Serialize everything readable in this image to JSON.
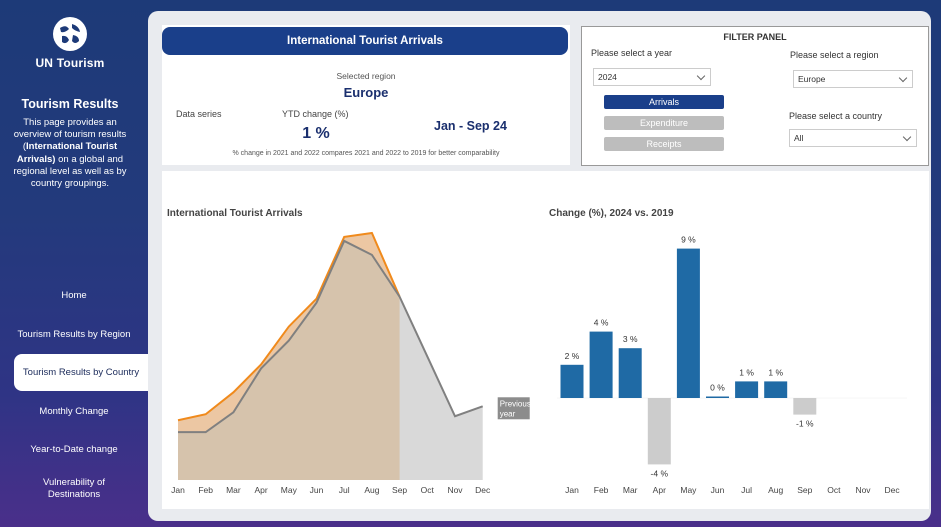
{
  "sidebar": {
    "brand": "UN Tourism",
    "title": "Tourism Results",
    "description_pre": "This page provides an overview of tourism results (",
    "description_bold": "International Tourist Arrivals)",
    "description_post": " on a global and regional level as well as by country groupings.",
    "nav": [
      {
        "label": "Home"
      },
      {
        "label": "Tourism Results by Region"
      },
      {
        "label": "Tourism Results by Country"
      },
      {
        "label": "Monthly Change"
      },
      {
        "label": "Year-to-Date change"
      },
      {
        "label": "Vulnerability of Destinations"
      }
    ]
  },
  "summary": {
    "title": "International Tourist Arrivals",
    "selected_region_label": "Selected region",
    "selected_region": "Europe",
    "data_series_label": "Data series",
    "ytd_label": "YTD change (%)",
    "ytd_value": "1 %",
    "period": "Jan - Sep 24",
    "note": "% change in 2021 and 2022 compares 2021 and 2022  to 2019 for better comparability"
  },
  "filter": {
    "title": "FILTER PANEL",
    "year_label": "Please select a year",
    "year_value": "2024",
    "region_label": "Please select a region",
    "region_value": "Europe",
    "country_label": "Please select a country",
    "country_value": "All",
    "series_buttons": [
      {
        "label": "Arrivals",
        "selected": true
      },
      {
        "label": "Expenditure",
        "selected": false
      },
      {
        "label": "Receipts",
        "selected": false
      }
    ]
  },
  "colors": {
    "accent": "#1a3f8a",
    "orange": "#f08a1c",
    "area_current": "#d6c3ac",
    "area_prev": "#d9d9d9",
    "line_prev": "#808080",
    "bar_pos": "#1f6aa5",
    "bar_neg": "#cccccc"
  },
  "chart_data": [
    {
      "type": "area",
      "title": "International Tourist Arrivals",
      "categories": [
        "Jan",
        "Feb",
        "Mar",
        "Apr",
        "May",
        "Jun",
        "Jul",
        "Aug",
        "Sep",
        "Oct",
        "Nov",
        "Dec"
      ],
      "ylim": [
        0,
        100
      ],
      "series": [
        {
          "name": "2024",
          "values": [
            30,
            33,
            44,
            58,
            77,
            91,
            122,
            124,
            92,
            null,
            null,
            null
          ]
        },
        {
          "name": "2019",
          "values": [
            24,
            24,
            34,
            56,
            70,
            89,
            120,
            113,
            92,
            62,
            32,
            37
          ]
        }
      ],
      "end_label": "Previous year"
    },
    {
      "type": "bar",
      "title": "Change (%), 2024 vs. 2019",
      "categories": [
        "Jan",
        "Feb",
        "Mar",
        "Apr",
        "May",
        "Jun",
        "Jul",
        "Aug",
        "Sep",
        "Oct",
        "Nov",
        "Dec"
      ],
      "values": [
        2,
        4,
        3,
        -4,
        9,
        0,
        1,
        1,
        -1,
        null,
        null,
        null
      ],
      "labels": [
        "2 %",
        "4 %",
        "3 %",
        "-4 %",
        "9 %",
        "0 %",
        "1 %",
        "1 %",
        "-1 %"
      ]
    }
  ]
}
